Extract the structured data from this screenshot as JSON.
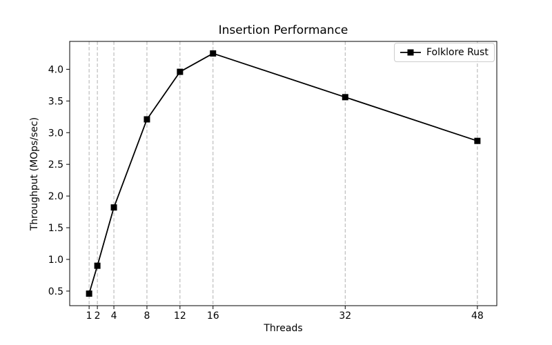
{
  "chart_data": {
    "type": "line",
    "title": "Insertion Performance",
    "xlabel": "Threads",
    "ylabel": "Throughput (MOps/sec)",
    "series": [
      {
        "name": "Folklore Rust",
        "x": [
          1,
          2,
          4,
          8,
          12,
          16,
          32,
          48
        ],
        "values": [
          0.46,
          0.9,
          1.82,
          3.21,
          3.96,
          4.25,
          3.56,
          2.87
        ],
        "color": "#000000",
        "marker": "square",
        "marker_size": 9,
        "line_width": 1.8
      }
    ],
    "x_ticks": [
      1,
      2,
      4,
      8,
      12,
      16,
      32,
      48
    ],
    "y_ticks": [
      0.5,
      1.0,
      1.5,
      2.0,
      2.5,
      3.0,
      3.5,
      4.0
    ],
    "xlim": [
      -1.35,
      50.35
    ],
    "ylim": [
      0.27,
      4.44
    ],
    "grid": "vertical-dashed",
    "grid_color": "#b0b0b0",
    "axis_color": "#000000",
    "legend_position": "upper right"
  },
  "legend": {
    "items": [
      {
        "label": "Folklore Rust",
        "marker": "black-square-marker"
      }
    ]
  }
}
